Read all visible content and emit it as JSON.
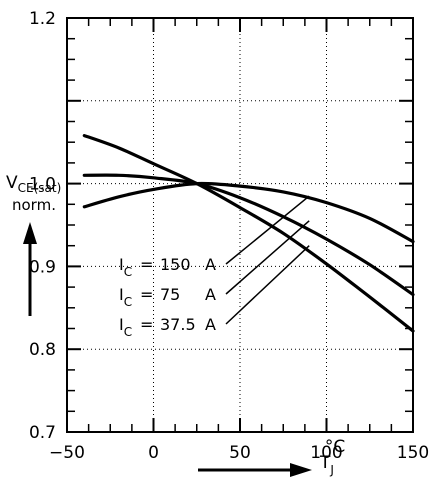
{
  "chart_data": {
    "type": "line",
    "title": "",
    "xlabel": "T",
    "xlabel_sub": "J",
    "x_unit": "°C",
    "ylabel": "V",
    "ylabel_sub": "CE(sat)",
    "ylabel_line2": "norm.",
    "xlim": [
      -50,
      150
    ],
    "ylim": [
      0.7,
      1.2
    ],
    "grid": true,
    "x_ticks": [
      -50,
      0,
      50,
      100,
      150
    ],
    "x_tick_labels": [
      "−50",
      "0",
      "50",
      "100",
      "150"
    ],
    "y_ticks": [
      0.7,
      0.8,
      0.9,
      1.0,
      1.1,
      1.2
    ],
    "y_tick_labels": [
      "0.7",
      "0.8",
      "0.9",
      "1.0",
      "",
      "1.2"
    ],
    "series": [
      {
        "name": "I_C = 150 A",
        "points": [
          [
            -40,
            0.972
          ],
          [
            -20,
            0.984
          ],
          [
            0,
            0.993
          ],
          [
            25,
            1.0
          ],
          [
            50,
            0.997
          ],
          [
            75,
            0.99
          ],
          [
            100,
            0.977
          ],
          [
            125,
            0.958
          ],
          [
            150,
            0.93
          ]
        ]
      },
      {
        "name": "I_C = 75 A",
        "points": [
          [
            -40,
            1.01
          ],
          [
            -20,
            1.01
          ],
          [
            0,
            1.007
          ],
          [
            25,
            1.0
          ],
          [
            50,
            0.983
          ],
          [
            75,
            0.96
          ],
          [
            100,
            0.933
          ],
          [
            125,
            0.902
          ],
          [
            150,
            0.866
          ]
        ]
      },
      {
        "name": "I_C = 37.5 A",
        "points": [
          [
            -40,
            1.058
          ],
          [
            -20,
            1.043
          ],
          [
            0,
            1.024
          ],
          [
            25,
            1.0
          ],
          [
            50,
            0.971
          ],
          [
            75,
            0.94
          ],
          [
            100,
            0.903
          ],
          [
            125,
            0.863
          ],
          [
            150,
            0.822
          ]
        ]
      }
    ],
    "annotations": [
      {
        "label_I": "I",
        "label_sub": "C",
        "eq": "=",
        "value": "150",
        "unit": "A",
        "pointer_target": [
          90,
          0.985
        ]
      },
      {
        "label_I": "I",
        "label_sub": "C",
        "eq": "=",
        "value": "75",
        "unit": "A",
        "pointer_target": [
          90,
          0.955
        ]
      },
      {
        "label_I": "I",
        "label_sub": "C",
        "eq": "=",
        "value": "37.5",
        "unit": "A",
        "pointer_target": [
          90,
          0.925
        ]
      }
    ]
  }
}
